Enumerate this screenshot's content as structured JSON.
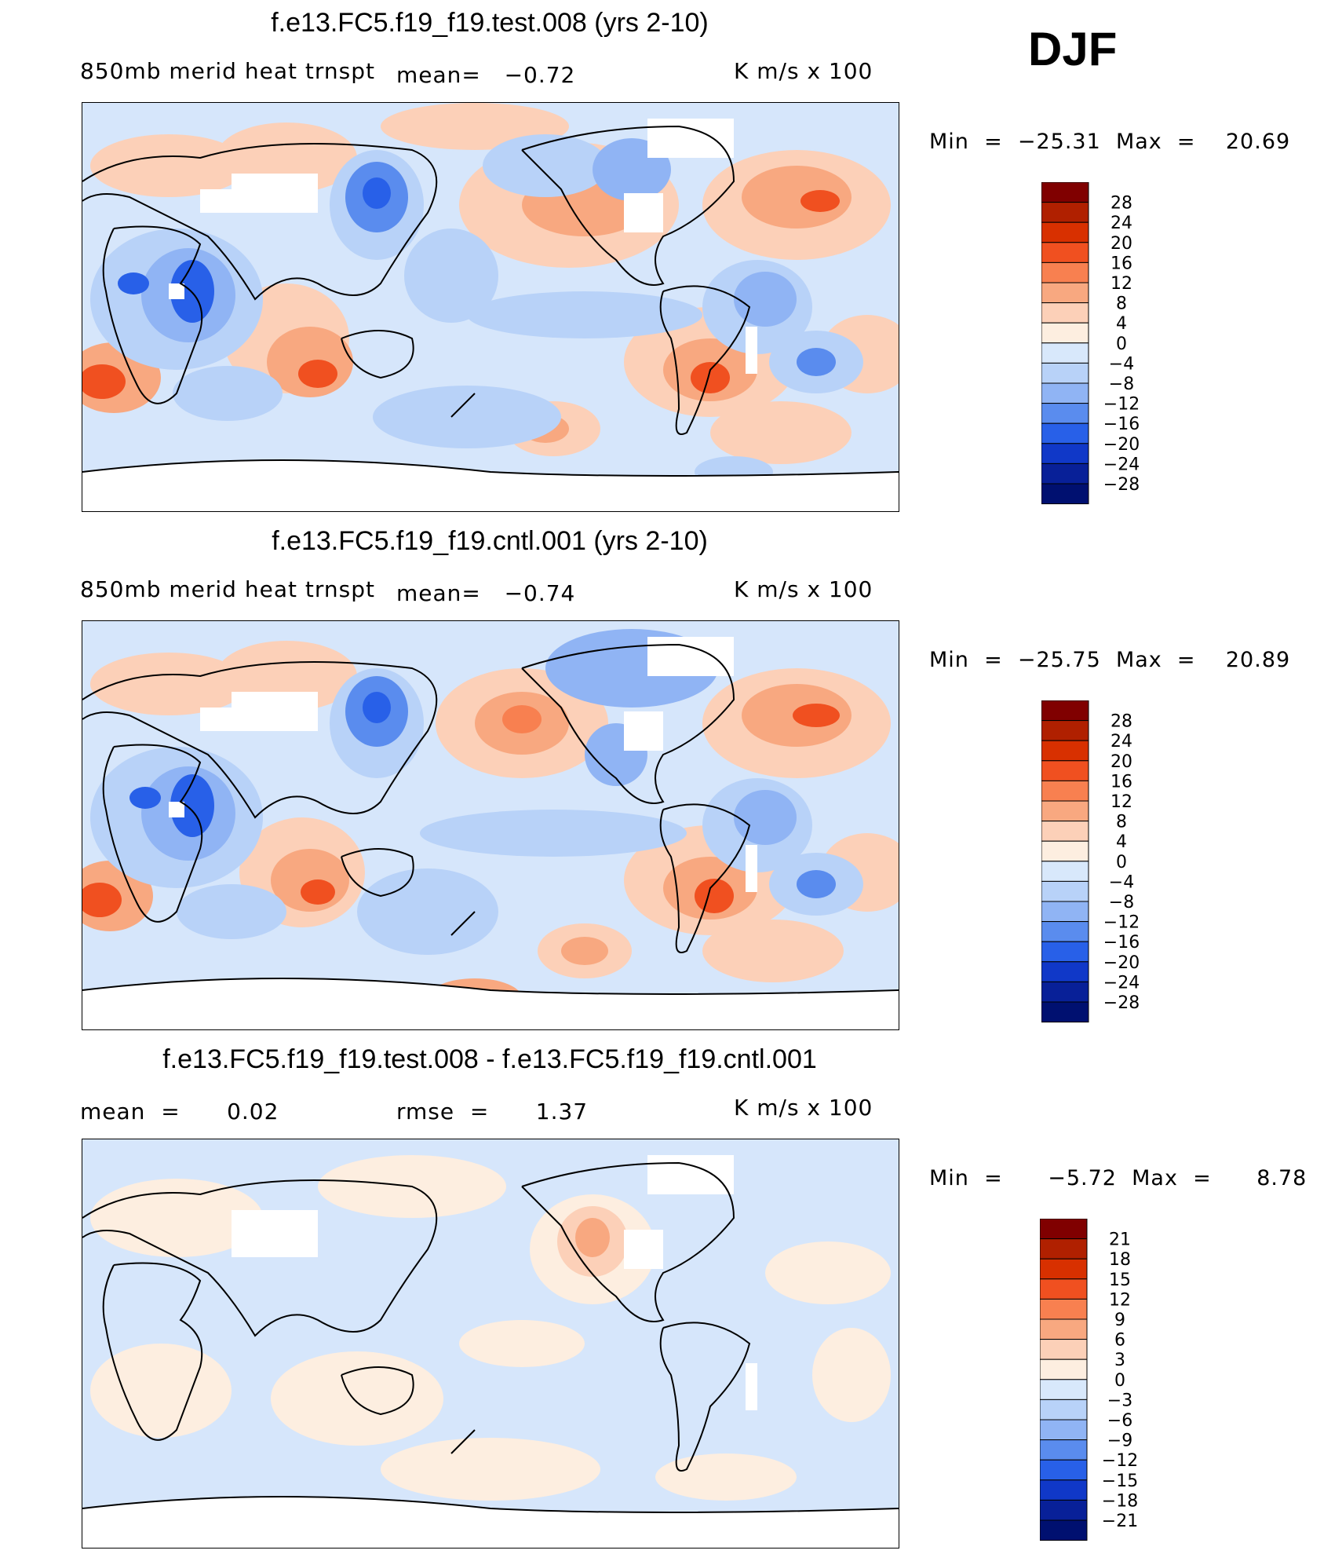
{
  "season": "DJF",
  "colors": {
    "land_outline": "#000000",
    "missing": "#ffffff",
    "ocean_bg": "#d6e6fb"
  },
  "chart_data": [
    {
      "type": "heatmap",
      "title": "f.e13.FC5.f19_f19.test.008 (yrs 2-10)",
      "left_label": "850mb merid heat trnspt",
      "center_label": "mean=   −0.72",
      "units": "K m/s x 100",
      "min_label": "Min  =  −25.31  Max  =    20.69",
      "min": -25.31,
      "max": 20.69,
      "mean": -0.72,
      "levels": [
        "28",
        "24",
        "20",
        "16",
        "12",
        "8",
        "4",
        "0",
        "−4",
        "−8",
        "−12",
        "−16",
        "−20",
        "−24",
        "−28"
      ],
      "colors": [
        "#800000",
        "#b02000",
        "#d83000",
        "#f05020",
        "#f88050",
        "#f8a880",
        "#fcd0b8",
        "#fdeee0",
        "#d8e8fb",
        "#b8d2f8",
        "#90b4f4",
        "#5a8cee",
        "#2860e8",
        "#1038c8",
        "#082098",
        "#001070"
      ]
    },
    {
      "type": "heatmap",
      "title": "f.e13.FC5.f19_f19.cntl.001 (yrs 2-10)",
      "left_label": "850mb merid heat trnspt",
      "center_label": "mean=   −0.74",
      "units": "K m/s x 100",
      "min_label": "Min  =  −25.75  Max  =    20.89",
      "min": -25.75,
      "max": 20.89,
      "mean": -0.74,
      "levels": [
        "28",
        "24",
        "20",
        "16",
        "12",
        "8",
        "4",
        "0",
        "−4",
        "−8",
        "−12",
        "−16",
        "−20",
        "−24",
        "−28"
      ],
      "colors": [
        "#800000",
        "#b02000",
        "#d83000",
        "#f05020",
        "#f88050",
        "#f8a880",
        "#fcd0b8",
        "#fdeee0",
        "#d8e8fb",
        "#b8d2f8",
        "#90b4f4",
        "#5a8cee",
        "#2860e8",
        "#1038c8",
        "#082098",
        "#001070"
      ]
    },
    {
      "type": "heatmap",
      "title": "f.e13.FC5.f19_f19.test.008 - f.e13.FC5.f19_f19.cntl.001",
      "left_label": "mean  =      0.02",
      "center_label": "rmse  =      1.37",
      "units": "K m/s x 100",
      "min_label": "Min  =      −5.72  Max  =      8.78",
      "min": -5.72,
      "max": 8.78,
      "mean": 0.02,
      "rmse": 1.37,
      "levels": [
        "21",
        "18",
        "15",
        "12",
        "9",
        "6",
        "3",
        "0",
        "−3",
        "−6",
        "−9",
        "−12",
        "−15",
        "−18",
        "−21"
      ],
      "colors": [
        "#800000",
        "#b02000",
        "#d83000",
        "#f05020",
        "#f88050",
        "#f8a880",
        "#fcd0b8",
        "#fdeee0",
        "#d8e8fb",
        "#b8d2f8",
        "#90b4f4",
        "#5a8cee",
        "#2860e8",
        "#1038c8",
        "#082098",
        "#001070"
      ]
    }
  ]
}
